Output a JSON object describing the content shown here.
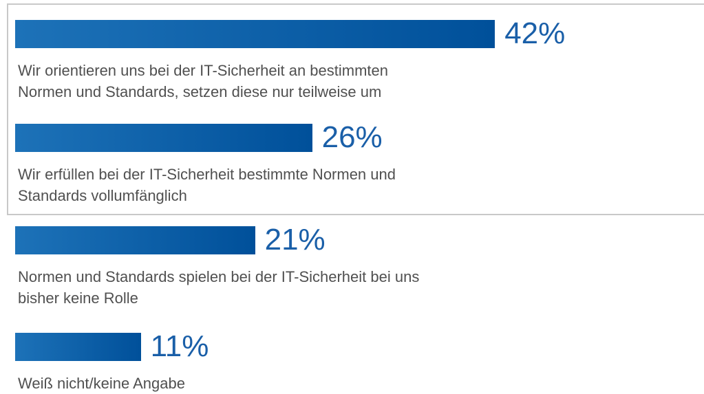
{
  "chart_data": {
    "type": "bar",
    "categories": [
      "Wir orientieren uns bei der IT-Sicherheit an bestimmten\nNormen und Standards, setzen diese nur teilweise um",
      "Wir erfüllen bei der IT-Sicherheit bestimmte Normen und\nStandards vollumfänglich",
      "Normen und Standards spielen bei der IT-Sicherheit bei uns\nbisher keine Rolle",
      "Weiß nicht/keine Angabe"
    ],
    "values": [
      42,
      26,
      21,
      11
    ],
    "value_labels": [
      "42%",
      "26%",
      "21%",
      "11%"
    ],
    "color": "#00509a"
  }
}
